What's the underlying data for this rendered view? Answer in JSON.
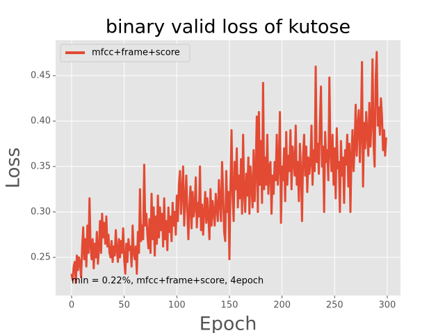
{
  "chart_data": {
    "type": "line",
    "title": "binary valid loss of kutose",
    "xlabel": "Epoch",
    "ylabel": "Loss",
    "annotation": "min  = 0.22%, mfcc+frame+score, 4epoch",
    "xlim": [
      -15.2,
      312.6
    ],
    "ylim": [
      0.208,
      0.489
    ],
    "xticks": [
      0,
      50,
      100,
      150,
      200,
      250,
      300
    ],
    "yticks": [
      {
        "value": 0.25,
        "label": "0.25"
      },
      {
        "value": 0.3,
        "label": "0.30"
      },
      {
        "value": 0.35,
        "label": "0.35"
      },
      {
        "value": 0.4,
        "label": "0.40"
      },
      {
        "value": 0.45,
        "label": "0.45"
      }
    ],
    "grid": true,
    "legend": "upper left",
    "x": [
      0,
      1,
      2,
      3,
      4,
      5,
      6,
      7,
      8,
      9,
      10,
      11,
      12,
      13,
      14,
      15,
      16,
      17,
      18,
      19,
      20,
      21,
      22,
      23,
      24,
      25,
      26,
      27,
      28,
      29,
      30,
      31,
      32,
      33,
      34,
      35,
      36,
      37,
      38,
      39,
      40,
      41,
      42,
      43,
      44,
      45,
      46,
      47,
      48,
      49,
      50,
      51,
      52,
      53,
      54,
      55,
      56,
      57,
      58,
      59,
      60,
      61,
      62,
      63,
      64,
      65,
      66,
      67,
      68,
      69,
      70,
      71,
      72,
      73,
      74,
      75,
      76,
      77,
      78,
      79,
      80,
      81,
      82,
      83,
      84,
      85,
      86,
      87,
      88,
      89,
      90,
      91,
      92,
      93,
      94,
      95,
      96,
      97,
      98,
      99,
      100,
      101,
      102,
      103,
      104,
      105,
      106,
      107,
      108,
      109,
      110,
      111,
      112,
      113,
      114,
      115,
      116,
      117,
      118,
      119,
      120,
      121,
      122,
      123,
      124,
      125,
      126,
      127,
      128,
      129,
      130,
      131,
      132,
      133,
      134,
      135,
      136,
      137,
      138,
      139,
      140,
      141,
      142,
      143,
      144,
      145,
      146,
      147,
      148,
      149,
      150,
      151,
      152,
      153,
      154,
      155,
      156,
      157,
      158,
      159,
      160,
      161,
      162,
      163,
      164,
      165,
      166,
      167,
      168,
      169,
      170,
      171,
      172,
      173,
      174,
      175,
      176,
      177,
      178,
      179,
      180,
      181,
      182,
      183,
      184,
      185,
      186,
      187,
      188,
      189,
      190,
      191,
      192,
      193,
      194,
      195,
      196,
      197,
      198,
      199,
      200,
      201,
      202,
      203,
      204,
      205,
      206,
      207,
      208,
      209,
      210,
      211,
      212,
      213,
      214,
      215,
      216,
      217,
      218,
      219,
      220,
      221,
      222,
      223,
      224,
      225,
      226,
      227,
      228,
      229,
      230,
      231,
      232,
      233,
      234,
      235,
      236,
      237,
      238,
      239,
      240,
      241,
      242,
      243,
      244,
      245,
      246,
      247,
      248,
      249,
      250,
      251,
      252,
      253,
      254,
      255,
      256,
      257,
      258,
      259,
      260,
      261,
      262,
      263,
      264,
      265,
      266,
      267,
      268,
      269,
      270,
      271,
      272,
      273,
      274,
      275,
      276,
      277,
      278,
      279,
      280,
      281,
      282,
      283,
      284,
      285,
      286,
      287,
      288,
      289,
      290,
      291,
      292,
      293,
      294,
      295,
      296,
      297,
      298,
      299
    ],
    "series": [
      {
        "name": "mfcc+frame+score",
        "color": "#e24a33",
        "values": [
          0.232,
          0.225,
          0.24,
          0.245,
          0.222,
          0.252,
          0.236,
          0.25,
          0.244,
          0.228,
          0.26,
          0.283,
          0.248,
          0.27,
          0.24,
          0.285,
          0.255,
          0.315,
          0.262,
          0.248,
          0.27,
          0.238,
          0.265,
          0.25,
          0.278,
          0.243,
          0.26,
          0.29,
          0.255,
          0.298,
          0.272,
          0.288,
          0.265,
          0.295,
          0.262,
          0.275,
          0.255,
          0.25,
          0.268,
          0.245,
          0.262,
          0.252,
          0.28,
          0.258,
          0.245,
          0.27,
          0.25,
          0.268,
          0.255,
          0.282,
          0.248,
          0.232,
          0.265,
          0.245,
          0.27,
          0.258,
          0.262,
          0.24,
          0.285,
          0.255,
          0.248,
          0.262,
          0.232,
          0.278,
          0.255,
          0.325,
          0.268,
          0.285,
          0.27,
          0.352,
          0.285,
          0.298,
          0.275,
          0.26,
          0.292,
          0.255,
          0.32,
          0.27,
          0.305,
          0.252,
          0.295,
          0.265,
          0.318,
          0.272,
          0.305,
          0.28,
          0.298,
          0.262,
          0.315,
          0.27,
          0.29,
          0.258,
          0.305,
          0.278,
          0.295,
          0.268,
          0.31,
          0.285,
          0.3,
          0.275,
          0.318,
          0.29,
          0.33,
          0.345,
          0.298,
          0.322,
          0.35,
          0.285,
          0.312,
          0.34,
          0.3,
          0.27,
          0.308,
          0.328,
          0.282,
          0.322,
          0.295,
          0.305,
          0.338,
          0.283,
          0.31,
          0.295,
          0.35,
          0.28,
          0.308,
          0.275,
          0.3,
          0.322,
          0.288,
          0.315,
          0.295,
          0.27,
          0.325,
          0.285,
          0.312,
          0.3,
          0.285,
          0.32,
          0.305,
          0.29,
          0.335,
          0.31,
          0.29,
          0.355,
          0.32,
          0.278,
          0.268,
          0.345,
          0.3,
          0.322,
          0.248,
          0.33,
          0.39,
          0.318,
          0.29,
          0.355,
          0.325,
          0.37,
          0.305,
          0.34,
          0.315,
          0.358,
          0.298,
          0.385,
          0.32,
          0.3,
          0.342,
          0.318,
          0.36,
          0.298,
          0.35,
          0.33,
          0.305,
          0.368,
          0.312,
          0.345,
          0.405,
          0.3,
          0.41,
          0.33,
          0.378,
          0.31,
          0.442,
          0.325,
          0.36,
          0.33,
          0.385,
          0.32,
          0.35,
          0.355,
          0.298,
          0.34,
          0.32,
          0.355,
          0.335,
          0.385,
          0.33,
          0.352,
          0.41,
          0.288,
          0.35,
          0.335,
          0.37,
          0.312,
          0.388,
          0.33,
          0.362,
          0.345,
          0.39,
          0.325,
          0.372,
          0.358,
          0.34,
          0.395,
          0.33,
          0.355,
          0.312,
          0.375,
          0.345,
          0.29,
          0.362,
          0.385,
          0.34,
          0.372,
          0.322,
          0.36,
          0.342,
          0.355,
          0.395,
          0.33,
          0.368,
          0.345,
          0.46,
          0.355,
          0.375,
          0.342,
          0.398,
          0.438,
          0.35,
          0.372,
          0.3,
          0.388,
          0.355,
          0.368,
          0.335,
          0.448,
          0.365,
          0.345,
          0.385,
          0.33,
          0.37,
          0.315,
          0.392,
          0.348,
          0.355,
          0.3,
          0.378,
          0.34,
          0.36,
          0.31,
          0.368,
          0.352,
          0.385,
          0.328,
          0.375,
          0.3,
          0.362,
          0.39,
          0.345,
          0.372,
          0.418,
          0.362,
          0.395,
          0.412,
          0.355,
          0.39,
          0.465,
          0.328,
          0.398,
          0.37,
          0.41,
          0.385,
          0.362,
          0.42,
          0.372,
          0.398,
          0.468,
          0.375,
          0.35,
          0.445,
          0.476,
          0.395,
          0.415,
          0.385,
          0.425,
          0.405,
          0.368,
          0.39,
          0.362,
          0.382
        ]
      }
    ]
  }
}
